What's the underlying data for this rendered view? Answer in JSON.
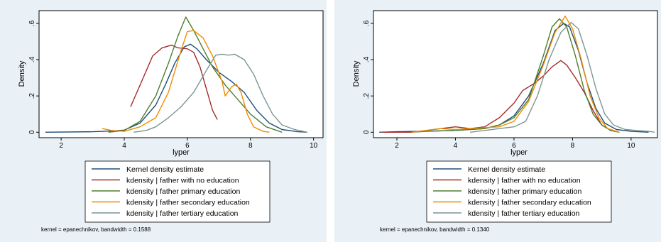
{
  "colors": {
    "panel_bg": "#e9f1f6",
    "plot_bg": "#ffffff",
    "frame": "#000000",
    "kernel": "#1f4e79",
    "no_education": "#a52a2a",
    "primary": "#4e7d2e",
    "secondary": "#f08c00",
    "tertiary": "#7a9690"
  },
  "chart_data": [
    {
      "type": "line",
      "xlabel": "lyper",
      "ylabel": "Density",
      "xlim": [
        1.3,
        10.3
      ],
      "ylim": [
        -0.03,
        0.67
      ],
      "xticks": [
        2,
        4,
        6,
        8,
        10
      ],
      "yticks": [
        0,
        0.2,
        0.4,
        0.6
      ],
      "xtick_labels": [
        "2",
        "4",
        "6",
        "8",
        "10"
      ],
      "ytick_labels": [
        "0",
        ".2",
        ".4",
        ".6"
      ],
      "legend": {
        "position": "bottom",
        "entries": [
          "Kernel density estimate",
          "kdensity | father with no education",
          "kdensity | father primary education",
          "kdensity | father secondary education",
          "kdensity | father tertiary education"
        ]
      },
      "note": "kernel = epanechnikov, bandwidth = 0.1588",
      "series": [
        {
          "name": "Kernel density estimate",
          "color": "#1f4e79",
          "points": [
            [
              1.5,
              0
            ],
            [
              3.0,
              0.003
            ],
            [
              3.5,
              0.006
            ],
            [
              4.0,
              0.012
            ],
            [
              4.5,
              0.05
            ],
            [
              5.0,
              0.15
            ],
            [
              5.3,
              0.26
            ],
            [
              5.6,
              0.38
            ],
            [
              5.9,
              0.47
            ],
            [
              6.1,
              0.485
            ],
            [
              6.3,
              0.46
            ],
            [
              6.6,
              0.4
            ],
            [
              7.0,
              0.33
            ],
            [
              7.4,
              0.28
            ],
            [
              7.8,
              0.22
            ],
            [
              8.2,
              0.12
            ],
            [
              8.6,
              0.05
            ],
            [
              9.0,
              0.015
            ],
            [
              9.5,
              0.003
            ],
            [
              9.8,
              0
            ]
          ]
        },
        {
          "name": "kdensity | father with no education",
          "color": "#a52a2a",
          "points": [
            [
              4.2,
              0.14
            ],
            [
              4.4,
              0.22
            ],
            [
              4.6,
              0.3
            ],
            [
              4.9,
              0.42
            ],
            [
              5.2,
              0.465
            ],
            [
              5.5,
              0.48
            ],
            [
              5.7,
              0.465
            ],
            [
              6.0,
              0.46
            ],
            [
              6.2,
              0.44
            ],
            [
              6.4,
              0.36
            ],
            [
              6.6,
              0.24
            ],
            [
              6.8,
              0.12
            ],
            [
              6.95,
              0.07
            ]
          ]
        },
        {
          "name": "kdensity | father primary education",
          "color": "#4e7d2e",
          "points": [
            [
              3.5,
              0
            ],
            [
              4.0,
              0.01
            ],
            [
              4.5,
              0.06
            ],
            [
              5.0,
              0.2
            ],
            [
              5.4,
              0.38
            ],
            [
              5.7,
              0.53
            ],
            [
              5.95,
              0.635
            ],
            [
              6.2,
              0.56
            ],
            [
              6.5,
              0.46
            ],
            [
              6.8,
              0.36
            ],
            [
              7.2,
              0.26
            ],
            [
              7.6,
              0.18
            ],
            [
              8.0,
              0.1
            ],
            [
              8.5,
              0.03
            ],
            [
              9.0,
              0
            ]
          ]
        },
        {
          "name": "kdensity | father secondary education",
          "color": "#f08c00",
          "points": [
            [
              3.3,
              0.02
            ],
            [
              3.6,
              0.01
            ],
            [
              4.0,
              0.005
            ],
            [
              4.5,
              0.03
            ],
            [
              5.0,
              0.08
            ],
            [
              5.4,
              0.22
            ],
            [
              5.8,
              0.45
            ],
            [
              6.0,
              0.555
            ],
            [
              6.2,
              0.56
            ],
            [
              6.5,
              0.52
            ],
            [
              6.8,
              0.42
            ],
            [
              7.1,
              0.28
            ],
            [
              7.2,
              0.2
            ],
            [
              7.4,
              0.25
            ],
            [
              7.55,
              0.265
            ],
            [
              7.7,
              0.22
            ],
            [
              7.9,
              0.1
            ],
            [
              8.1,
              0.03
            ],
            [
              8.4,
              0.005
            ],
            [
              8.6,
              0
            ]
          ]
        },
        {
          "name": "kdensity | father tertiary education",
          "color": "#7a9690",
          "points": [
            [
              4.3,
              0
            ],
            [
              4.7,
              0.01
            ],
            [
              5.0,
              0.03
            ],
            [
              5.4,
              0.08
            ],
            [
              5.8,
              0.14
            ],
            [
              6.2,
              0.22
            ],
            [
              6.6,
              0.34
            ],
            [
              6.9,
              0.425
            ],
            [
              7.1,
              0.43
            ],
            [
              7.3,
              0.425
            ],
            [
              7.5,
              0.43
            ],
            [
              7.8,
              0.4
            ],
            [
              8.1,
              0.32
            ],
            [
              8.4,
              0.2
            ],
            [
              8.7,
              0.1
            ],
            [
              9.0,
              0.04
            ],
            [
              9.4,
              0.015
            ],
            [
              9.8,
              0
            ]
          ]
        }
      ]
    },
    {
      "type": "line",
      "xlabel": "lyper",
      "ylabel": "Density",
      "xlim": [
        1.2,
        10.9
      ],
      "ylim": [
        -0.03,
        0.67
      ],
      "xticks": [
        2,
        4,
        6,
        8,
        10
      ],
      "yticks": [
        0,
        0.2,
        0.4,
        0.6
      ],
      "xtick_labels": [
        "2",
        "4",
        "6",
        "8",
        "10"
      ],
      "ytick_labels": [
        "0",
        ".2",
        ".4",
        ".6"
      ],
      "legend": {
        "position": "bottom",
        "entries": [
          "Kernel density estimate",
          "kdensity | father with no education",
          "kdensity | father primary education",
          "kdensity | father secondary education",
          "kdensity | father tertiary education"
        ]
      },
      "note": "kernel = epanechnikov, bandwidth = 0.1340",
      "series": [
        {
          "name": "Kernel density estimate",
          "color": "#1f4e79",
          "points": [
            [
              1.4,
              0
            ],
            [
              2.0,
              0.003
            ],
            [
              3.0,
              0.006
            ],
            [
              4.0,
              0.01
            ],
            [
              5.0,
              0.02
            ],
            [
              5.5,
              0.04
            ],
            [
              6.0,
              0.09
            ],
            [
              6.5,
              0.2
            ],
            [
              7.0,
              0.38
            ],
            [
              7.4,
              0.56
            ],
            [
              7.7,
              0.6
            ],
            [
              7.9,
              0.58
            ],
            [
              8.2,
              0.45
            ],
            [
              8.5,
              0.27
            ],
            [
              8.8,
              0.13
            ],
            [
              9.1,
              0.05
            ],
            [
              9.5,
              0.015
            ],
            [
              10.0,
              0.005
            ],
            [
              10.6,
              0
            ]
          ]
        },
        {
          "name": "kdensity | father with no education",
          "color": "#a52a2a",
          "points": [
            [
              1.5,
              0
            ],
            [
              2.5,
              0
            ],
            [
              3.0,
              0.01
            ],
            [
              3.5,
              0.02
            ],
            [
              4.0,
              0.03
            ],
            [
              4.5,
              0.02
            ],
            [
              5.0,
              0.03
            ],
            [
              5.5,
              0.08
            ],
            [
              6.0,
              0.16
            ],
            [
              6.3,
              0.23
            ],
            [
              6.7,
              0.27
            ],
            [
              7.0,
              0.31
            ],
            [
              7.3,
              0.36
            ],
            [
              7.6,
              0.395
            ],
            [
              7.8,
              0.37
            ],
            [
              8.1,
              0.3
            ],
            [
              8.4,
              0.22
            ],
            [
              8.7,
              0.12
            ],
            [
              9.0,
              0.04
            ],
            [
              9.3,
              0.01
            ],
            [
              9.6,
              0
            ]
          ]
        },
        {
          "name": "kdensity | father primary education",
          "color": "#4e7d2e",
          "points": [
            [
              2.5,
              0
            ],
            [
              3.0,
              0.005
            ],
            [
              4.0,
              0.01
            ],
            [
              5.0,
              0.02
            ],
            [
              5.5,
              0.04
            ],
            [
              6.0,
              0.08
            ],
            [
              6.5,
              0.18
            ],
            [
              7.0,
              0.42
            ],
            [
              7.3,
              0.58
            ],
            [
              7.55,
              0.625
            ],
            [
              7.8,
              0.58
            ],
            [
              8.1,
              0.42
            ],
            [
              8.4,
              0.23
            ],
            [
              8.7,
              0.1
            ],
            [
              9.0,
              0.04
            ],
            [
              9.3,
              0.01
            ],
            [
              9.6,
              0
            ]
          ]
        },
        {
          "name": "kdensity | father secondary education",
          "color": "#f08c00",
          "points": [
            [
              2.5,
              0
            ],
            [
              3.0,
              0.01
            ],
            [
              3.5,
              0.02
            ],
            [
              4.0,
              0.015
            ],
            [
              4.5,
              0.02
            ],
            [
              5.0,
              0.025
            ],
            [
              5.5,
              0.03
            ],
            [
              6.0,
              0.06
            ],
            [
              6.5,
              0.17
            ],
            [
              7.0,
              0.37
            ],
            [
              7.4,
              0.55
            ],
            [
              7.75,
              0.64
            ],
            [
              8.0,
              0.57
            ],
            [
              8.3,
              0.4
            ],
            [
              8.6,
              0.2
            ],
            [
              8.9,
              0.08
            ],
            [
              9.2,
              0.02
            ],
            [
              9.6,
              0
            ]
          ]
        },
        {
          "name": "kdensity | father tertiary education",
          "color": "#7a9690",
          "points": [
            [
              4.5,
              0
            ],
            [
              5.0,
              0.01
            ],
            [
              5.5,
              0.02
            ],
            [
              6.0,
              0.03
            ],
            [
              6.4,
              0.06
            ],
            [
              6.8,
              0.2
            ],
            [
              7.2,
              0.4
            ],
            [
              7.6,
              0.55
            ],
            [
              7.95,
              0.605
            ],
            [
              8.2,
              0.57
            ],
            [
              8.5,
              0.42
            ],
            [
              8.8,
              0.24
            ],
            [
              9.1,
              0.1
            ],
            [
              9.4,
              0.04
            ],
            [
              9.8,
              0.015
            ],
            [
              10.2,
              0.01
            ],
            [
              10.6,
              0.005
            ],
            [
              10.8,
              0
            ]
          ]
        }
      ]
    }
  ]
}
